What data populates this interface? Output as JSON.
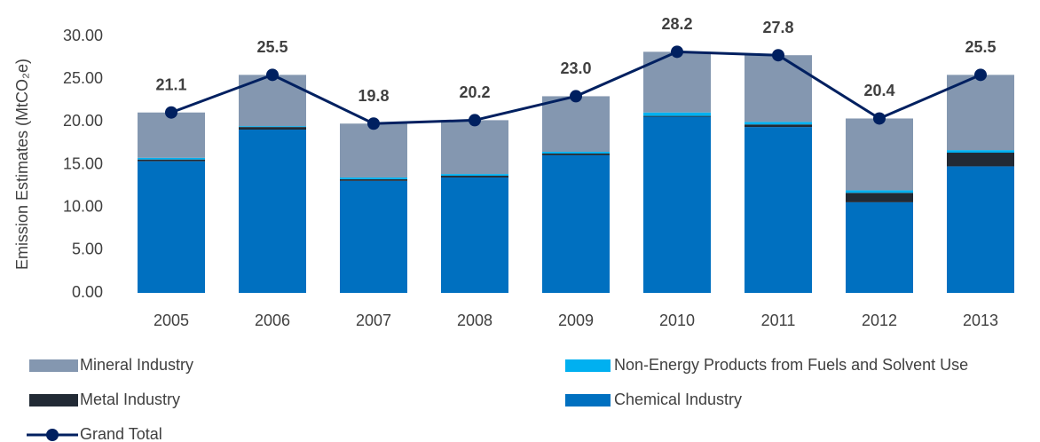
{
  "chart_data": {
    "type": "bar",
    "stacked": true,
    "y_label": "Emission Estimates (MtCO₂e)",
    "categories": [
      "2005",
      "2006",
      "2007",
      "2008",
      "2009",
      "2010",
      "2011",
      "2012",
      "2013"
    ],
    "series": [
      {
        "name": "Chemical Industry",
        "color": "#0070c0",
        "values": [
          15.4,
          19.1,
          13.1,
          13.5,
          16.1,
          20.6,
          19.4,
          10.6,
          14.8
        ]
      },
      {
        "name": "Metal Industry",
        "color": "#222a35",
        "values": [
          0.2,
          0.3,
          0.2,
          0.2,
          0.2,
          0.1,
          0.3,
          1.1,
          1.6
        ]
      },
      {
        "name": "Non-Energy Products from Fuels and Solvent Use",
        "color": "#00b0f0",
        "values": [
          0.2,
          0.1,
          0.2,
          0.2,
          0.2,
          0.4,
          0.3,
          0.3,
          0.3
        ]
      },
      {
        "name": "Mineral Industry",
        "color": "#8497b0",
        "values": [
          5.3,
          6.0,
          6.3,
          6.3,
          6.5,
          7.1,
          7.8,
          8.4,
          8.8
        ]
      }
    ],
    "line": {
      "name": "Grand Total",
      "color": "#002060",
      "values": [
        21.1,
        25.5,
        19.8,
        20.2,
        23.0,
        28.2,
        27.8,
        20.4,
        25.5
      ],
      "value_labels": [
        "21.1",
        "25.5",
        "19.8",
        "20.2",
        "23.0",
        "28.2",
        "27.8",
        "20.4",
        "25.5"
      ]
    },
    "ylim": [
      0,
      30
    ],
    "yticks": [
      {
        "value": 0,
        "label": "0.00"
      },
      {
        "value": 5,
        "label": "5.00"
      },
      {
        "value": 10,
        "label": "10.00"
      },
      {
        "value": 15,
        "label": "15.00"
      },
      {
        "value": 20,
        "label": "20.00"
      },
      {
        "value": 25,
        "label": "25.00"
      },
      {
        "value": 30,
        "label": "30.00"
      }
    ],
    "grid": false
  }
}
